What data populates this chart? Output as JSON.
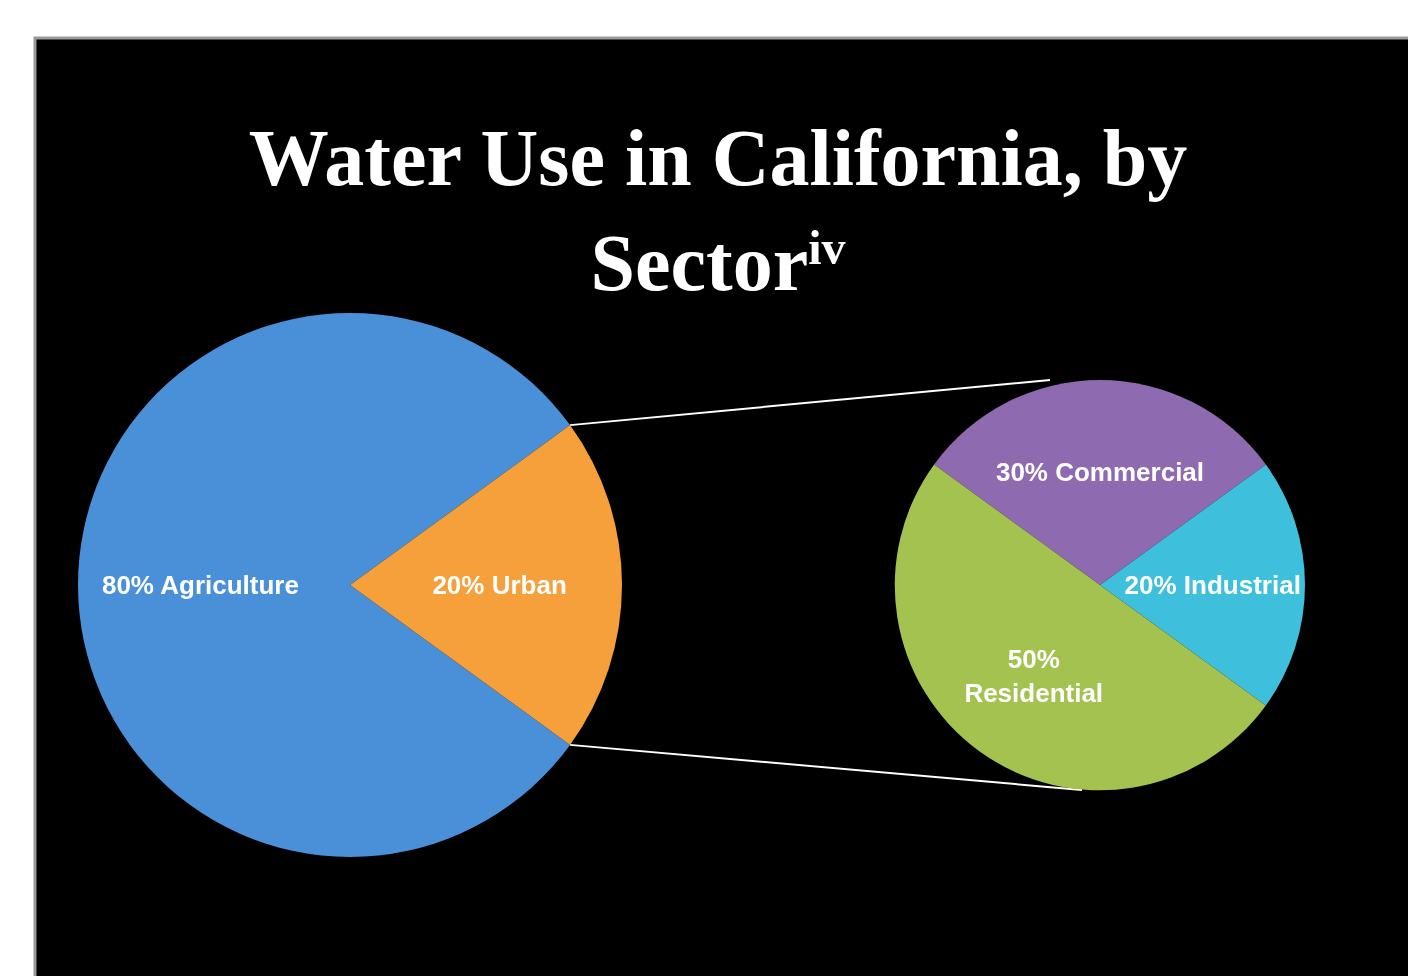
{
  "chart_data": [
    {
      "type": "pie",
      "title": "Water Use in California, by Sector$^{iv}$",
      "categories": [
        "Agriculture",
        "Urban"
      ],
      "values": [
        80,
        20
      ],
      "colors": [
        "#4a90d9",
        "#f5a03a"
      ],
      "value_labels": [
        "80%",
        "20%"
      ]
    },
    {
      "type": "pie",
      "categories": [
        "Commercial",
        "Industrial",
        "Residential"
      ],
      "values": [
        30,
        20,
        50
      ],
      "colors": [
        "#8e6bb0",
        "#3ec0dc",
        "#a4c24f"
      ],
      "value_labels": [
        "30%",
        "20%",
        "50%"
      ]
    }
  ]
}
